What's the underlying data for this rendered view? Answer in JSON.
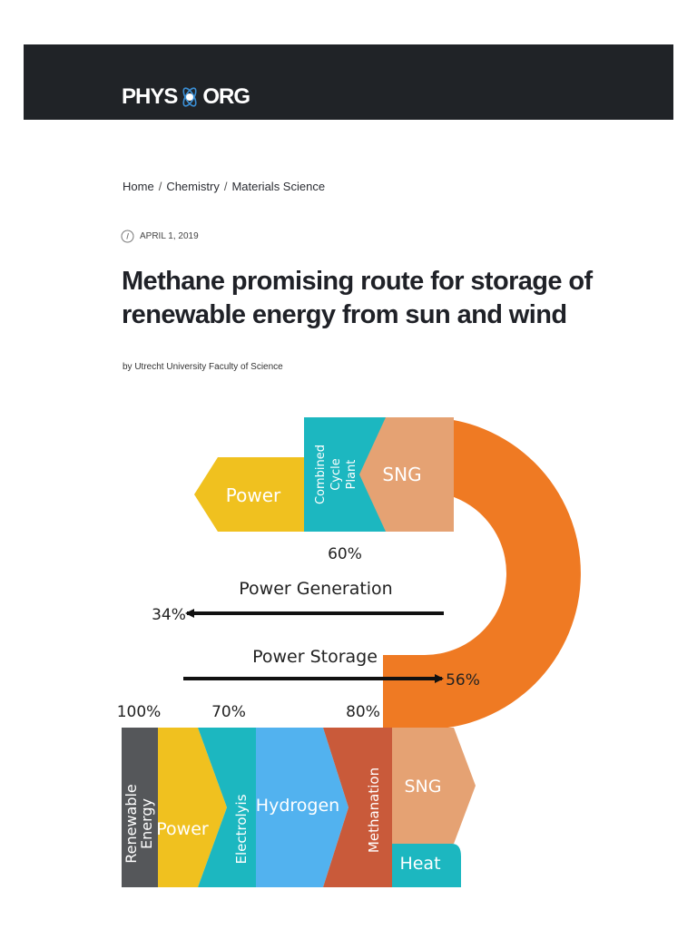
{
  "header": {
    "logo_left": "PHYS",
    "logo_right": "ORG",
    "logo_icon": "atom-icon"
  },
  "breadcrumb": [
    "Home",
    "Chemistry",
    "Materials Science"
  ],
  "article": {
    "date": "APRIL 1, 2019",
    "title": "Methane promising route for storage of renewable energy from sun and wind",
    "byline": "by Utrecht University Faculty of Science"
  },
  "diagram": {
    "blocks": {
      "power_top": "Power",
      "combined_cycle": [
        "Combined",
        "Cycle",
        "Plant"
      ],
      "sng_top": "SNG",
      "renewable": [
        "Renewable",
        "Energy"
      ],
      "power_bottom": "Power",
      "electrolysis": "Electrolyis",
      "hydrogen": "Hydrogen",
      "methanation": "Methanation",
      "sng_bottom": "SNG",
      "heat": "Heat"
    },
    "labels": {
      "pct_60": "60%",
      "power_generation": "Power Generation",
      "pct_34": "34%",
      "power_storage": "Power Storage",
      "pct_56": "56%",
      "pct_100": "100%",
      "pct_70": "70%",
      "pct_80": "80%"
    },
    "colors": {
      "yellow": "#f0c11f",
      "teal": "#1cb7c0",
      "salmon": "#e5a273",
      "orange": "#ef7a23",
      "blue": "#52b2ef",
      "brick": "#c95a3a",
      "grey": "#55575a"
    }
  }
}
